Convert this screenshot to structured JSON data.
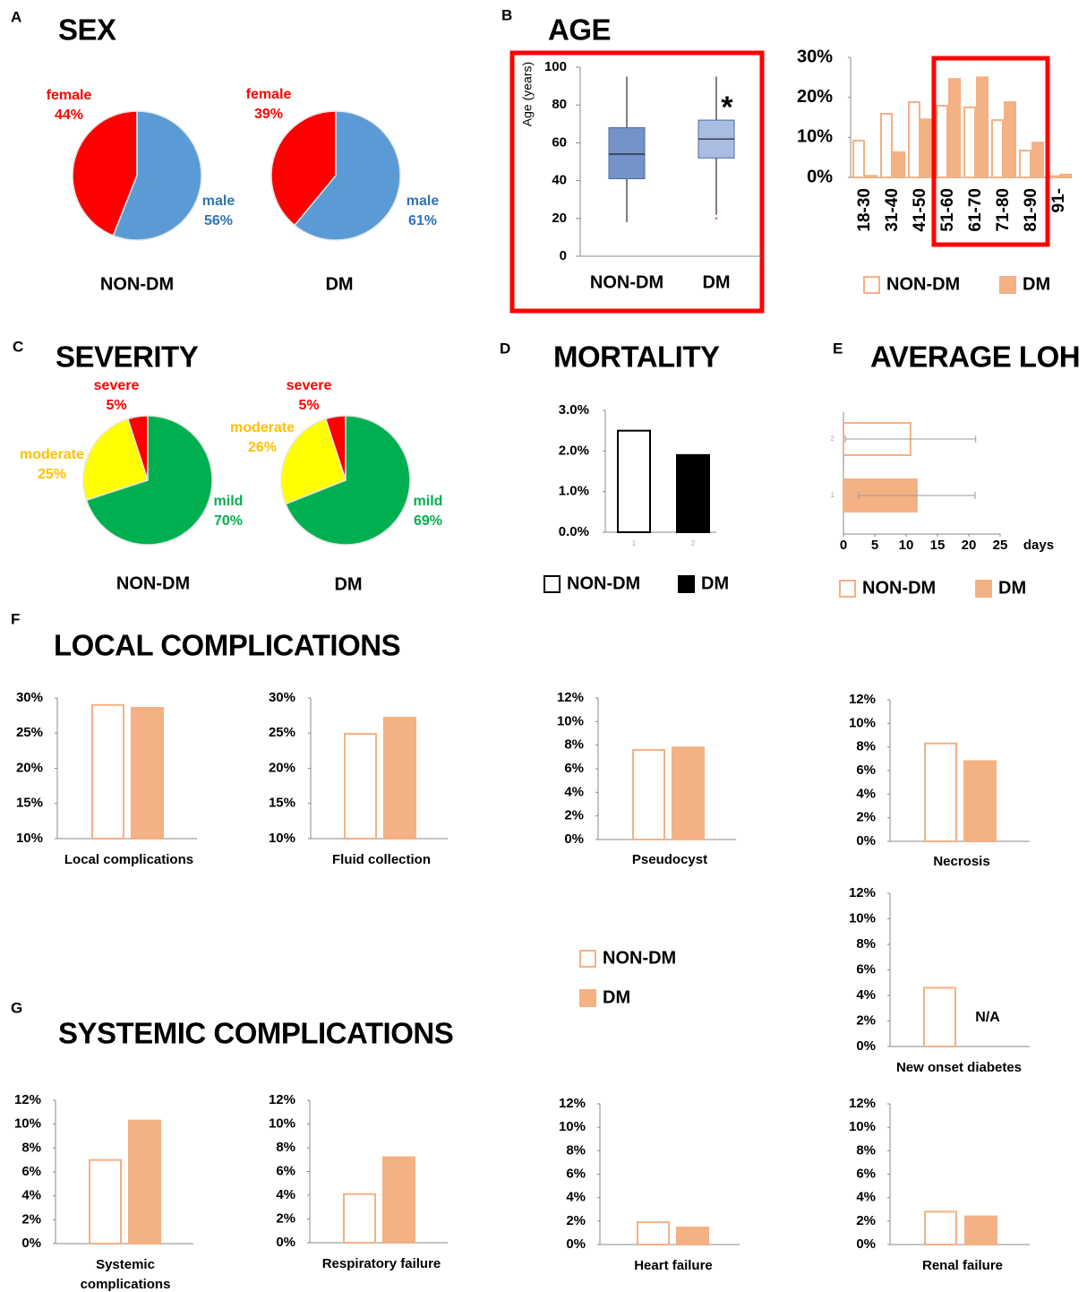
{
  "chart_data": [
    {
      "type": "heading",
      "panel": "A",
      "title": "SEX"
    },
    {
      "type": "pie",
      "label": "NON-DM",
      "categories": [
        "female",
        "male"
      ],
      "values": [
        44,
        56
      ],
      "value_labels": [
        "44%",
        "56%"
      ],
      "colors": [
        "#ff0000",
        "#5b9bd5"
      ],
      "label_colors": [
        "#ff0000",
        "#2e75b6"
      ]
    },
    {
      "type": "pie",
      "label": "DM",
      "categories": [
        "female",
        "male"
      ],
      "values": [
        39,
        61
      ],
      "value_labels": [
        "39%",
        "61%"
      ],
      "colors": [
        "#ff0000",
        "#5b9bd5"
      ],
      "label_colors": [
        "#ff0000",
        "#2e75b6"
      ]
    },
    {
      "type": "heading",
      "panel": "B",
      "title": "AGE"
    },
    {
      "type": "box",
      "ylabel": "Age (years)",
      "categories": [
        "NON-DM",
        "DM"
      ],
      "boxes": [
        {
          "min": 18,
          "q1": 41,
          "median": 54,
          "q3": 68,
          "max": 95
        },
        {
          "min": 22,
          "q1": 52,
          "median": 62,
          "q3": 72,
          "max": 95,
          "outliers": [
            20
          ]
        }
      ],
      "colors": [
        "#7393c9",
        "#a9bde3"
      ],
      "ylim": [
        0,
        100
      ],
      "yticks": [
        0,
        20,
        40,
        60,
        80,
        100
      ],
      "annotation": "*"
    },
    {
      "type": "bar",
      "categories": [
        "18-30",
        "31-40",
        "41-50",
        "51-60",
        "61-70",
        "71-80",
        "81-90",
        "91-"
      ],
      "series": [
        {
          "fill": "#ffffff",
          "values": [
            9.2,
            15.9,
            18.8,
            17.9,
            17.5,
            14.3,
            6.7,
            0.3
          ]
        },
        {
          "fill": "#f4b183",
          "values": [
            0.4,
            6.3,
            14.5,
            24.6,
            25,
            18.8,
            8.7,
            0.7
          ]
        }
      ],
      "stroke_color": "#f4b183",
      "ylim": [
        0,
        30
      ],
      "yticks": [
        {
          "value": 0,
          "label": "0%"
        },
        {
          "value": 10,
          "label": "10%"
        },
        {
          "value": 20,
          "label": "20%"
        },
        {
          "value": 30,
          "label": "30%"
        }
      ]
    },
    {
      "type": "legend",
      "entries": [
        "NON-DM",
        "DM"
      ],
      "fill_colors": [
        "#ffffff",
        "#f4b183"
      ],
      "stroke_color": "#f4b183"
    },
    {
      "type": "heading",
      "panel": "C",
      "title": "SEVERITY"
    },
    {
      "type": "pie",
      "label": "NON-DM",
      "categories": [
        "severe",
        "moderate",
        "mild"
      ],
      "values": [
        5,
        25,
        70
      ],
      "value_labels": [
        "5%",
        "25%",
        "70%"
      ],
      "colors": [
        "#ff0000",
        "#ffff00",
        "#00b050"
      ],
      "label_colors": [
        "#ff0000",
        "#ffc000",
        "#00b050"
      ]
    },
    {
      "type": "pie",
      "label": "DM",
      "categories": [
        "severe",
        "moderate",
        "mild"
      ],
      "values": [
        5,
        26,
        69
      ],
      "value_labels": [
        "5%",
        "26%",
        "69%"
      ],
      "colors": [
        "#ff0000",
        "#ffff00",
        "#00b050"
      ],
      "label_colors": [
        "#ff0000",
        "#ffc000",
        "#00b050"
      ]
    },
    {
      "type": "heading",
      "panel": "D",
      "title": "MORTALITY"
    },
    {
      "type": "bar",
      "categories": [
        "1",
        "2"
      ],
      "values": [
        2.5,
        1.9
      ],
      "fill_colors": [
        "#ffffff",
        "#000000"
      ],
      "stroke_color": "#000000",
      "ylim": [
        0,
        3
      ],
      "yticks": [
        {
          "value": 0,
          "label": "0.0%"
        },
        {
          "value": 1,
          "label": "1.0%"
        },
        {
          "value": 2,
          "label": "2.0%"
        },
        {
          "value": 3,
          "label": "3.0%"
        }
      ]
    },
    {
      "type": "legend",
      "entries": [
        "NON-DM",
        "DM"
      ],
      "fill_colors": [
        "#ffffff",
        "#000000"
      ],
      "stroke_color": "#000000"
    },
    {
      "type": "heading",
      "panel": "E",
      "title": "AVERAGE LOH"
    },
    {
      "type": "hbar",
      "categories": [
        "2",
        "1"
      ],
      "values": [
        10.7,
        11.7
      ],
      "errors": [
        10.4,
        9.3
      ],
      "fill_colors": [
        "#ffffff",
        "#f4b183"
      ],
      "stroke_color": "#f4b183",
      "xlim": [
        0,
        25
      ],
      "xticks": [
        0,
        5,
        10,
        15,
        20,
        25
      ],
      "xlabel": "days"
    },
    {
      "type": "legend",
      "entries": [
        "NON-DM",
        "DM"
      ],
      "fill_colors": [
        "#ffffff",
        "#f4b183"
      ],
      "stroke_color": "#f4b183"
    },
    {
      "type": "heading",
      "panel": "F",
      "title": "LOCAL COMPLICATIONS"
    },
    {
      "type": "bar",
      "xlabel": "Local complications",
      "values": [
        29,
        28.6
      ],
      "fill_colors": [
        "#ffffff",
        "#f4b183"
      ],
      "stroke_color": "#f4b183",
      "ylim": [
        10,
        30
      ],
      "yticks": [
        {
          "value": 10,
          "label": "10%"
        },
        {
          "value": 15,
          "label": "15%"
        },
        {
          "value": 20,
          "label": "20%"
        },
        {
          "value": 25,
          "label": "25%"
        },
        {
          "value": 30,
          "label": "30%"
        }
      ]
    },
    {
      "type": "bar",
      "xlabel": "Fluid collection",
      "values": [
        24.9,
        27.2
      ],
      "fill_colors": [
        "#ffffff",
        "#f4b183"
      ],
      "stroke_color": "#f4b183",
      "ylim": [
        10,
        30
      ],
      "yticks": [
        {
          "value": 10,
          "label": "10%"
        },
        {
          "value": 15,
          "label": "15%"
        },
        {
          "value": 20,
          "label": "20%"
        },
        {
          "value": 25,
          "label": "25%"
        },
        {
          "value": 30,
          "label": "30%"
        }
      ]
    },
    {
      "type": "bar",
      "xlabel": "Pseudocyst",
      "values": [
        7.6,
        7.8
      ],
      "fill_colors": [
        "#ffffff",
        "#f4b183"
      ],
      "stroke_color": "#f4b183",
      "ylim": [
        0,
        12
      ],
      "yticks": [
        {
          "value": 0,
          "label": "0%"
        },
        {
          "value": 2,
          "label": "2%"
        },
        {
          "value": 4,
          "label": "4%"
        },
        {
          "value": 6,
          "label": "6%"
        },
        {
          "value": 8,
          "label": "8%"
        },
        {
          "value": 10,
          "label": "10%"
        },
        {
          "value": 12,
          "label": "12%"
        }
      ]
    },
    {
      "type": "bar",
      "xlabel": "Necrosis",
      "values": [
        8.3,
        6.8
      ],
      "fill_colors": [
        "#ffffff",
        "#f4b183"
      ],
      "stroke_color": "#f4b183",
      "ylim": [
        0,
        12
      ],
      "yticks": [
        {
          "value": 0,
          "label": "0%"
        },
        {
          "value": 2,
          "label": "2%"
        },
        {
          "value": 4,
          "label": "4%"
        },
        {
          "value": 6,
          "label": "6%"
        },
        {
          "value": 8,
          "label": "8%"
        },
        {
          "value": 10,
          "label": "10%"
        },
        {
          "value": 12,
          "label": "12%"
        }
      ]
    },
    {
      "type": "bar",
      "xlabel": "New onset diabetes",
      "values": [
        4.6,
        null
      ],
      "annotation": "N/A",
      "fill_colors": [
        "#ffffff",
        "#f4b183"
      ],
      "stroke_color": "#f4b183",
      "ylim": [
        0,
        12
      ],
      "yticks": [
        {
          "value": 0,
          "label": "0%"
        },
        {
          "value": 2,
          "label": "2%"
        },
        {
          "value": 4,
          "label": "4%"
        },
        {
          "value": 6,
          "label": "6%"
        },
        {
          "value": 8,
          "label": "8%"
        },
        {
          "value": 10,
          "label": "10%"
        },
        {
          "value": 12,
          "label": "12%"
        }
      ]
    },
    {
      "type": "legend",
      "entries": [
        "NON-DM",
        "DM"
      ],
      "fill_colors": [
        "#ffffff",
        "#f4b183"
      ],
      "stroke_color": "#f4b183"
    },
    {
      "type": "heading",
      "panel": "G",
      "title": "SYSTEMIC COMPLICATIONS"
    },
    {
      "type": "bar",
      "xlabel_lines": [
        "Systemic",
        "complications"
      ],
      "values": [
        7.0,
        10.3
      ],
      "fill_colors": [
        "#ffffff",
        "#f4b183"
      ],
      "stroke_color": "#f4b183",
      "ylim": [
        0,
        12
      ],
      "yticks": [
        {
          "value": 0,
          "label": "0%"
        },
        {
          "value": 2,
          "label": "2%"
        },
        {
          "value": 4,
          "label": "4%"
        },
        {
          "value": 6,
          "label": "6%"
        },
        {
          "value": 8,
          "label": "8%"
        },
        {
          "value": 10,
          "label": "10%"
        },
        {
          "value": 12,
          "label": "12%"
        }
      ]
    },
    {
      "type": "bar",
      "xlabel": "Respiratory failure",
      "values": [
        4.1,
        7.2
      ],
      "fill_colors": [
        "#ffffff",
        "#f4b183"
      ],
      "stroke_color": "#f4b183",
      "ylim": [
        0,
        12
      ],
      "yticks": [
        {
          "value": 0,
          "label": "0%"
        },
        {
          "value": 2,
          "label": "2%"
        },
        {
          "value": 4,
          "label": "4%"
        },
        {
          "value": 6,
          "label": "6%"
        },
        {
          "value": 8,
          "label": "8%"
        },
        {
          "value": 10,
          "label": "10%"
        },
        {
          "value": 12,
          "label": "12%"
        }
      ]
    },
    {
      "type": "bar",
      "xlabel": "Heart failure",
      "values": [
        1.9,
        1.45
      ],
      "fill_colors": [
        "#ffffff",
        "#f4b183"
      ],
      "stroke_color": "#f4b183",
      "ylim": [
        0,
        12
      ],
      "yticks": [
        {
          "value": 0,
          "label": "0%"
        },
        {
          "value": 2,
          "label": "2%"
        },
        {
          "value": 4,
          "label": "4%"
        },
        {
          "value": 6,
          "label": "6%"
        },
        {
          "value": 8,
          "label": "8%"
        },
        {
          "value": 10,
          "label": "10%"
        },
        {
          "value": 12,
          "label": "12%"
        }
      ]
    },
    {
      "type": "bar",
      "xlabel": "Renal failure",
      "values": [
        2.8,
        2.4
      ],
      "fill_colors": [
        "#ffffff",
        "#f4b183"
      ],
      "stroke_color": "#f4b183",
      "ylim": [
        0,
        12
      ],
      "yticks": [
        {
          "value": 0,
          "label": "0%"
        },
        {
          "value": 2,
          "label": "2%"
        },
        {
          "value": 4,
          "label": "4%"
        },
        {
          "value": 6,
          "label": "6%"
        },
        {
          "value": 8,
          "label": "8%"
        },
        {
          "value": 10,
          "label": "10%"
        },
        {
          "value": 12,
          "label": "12%"
        }
      ]
    }
  ]
}
